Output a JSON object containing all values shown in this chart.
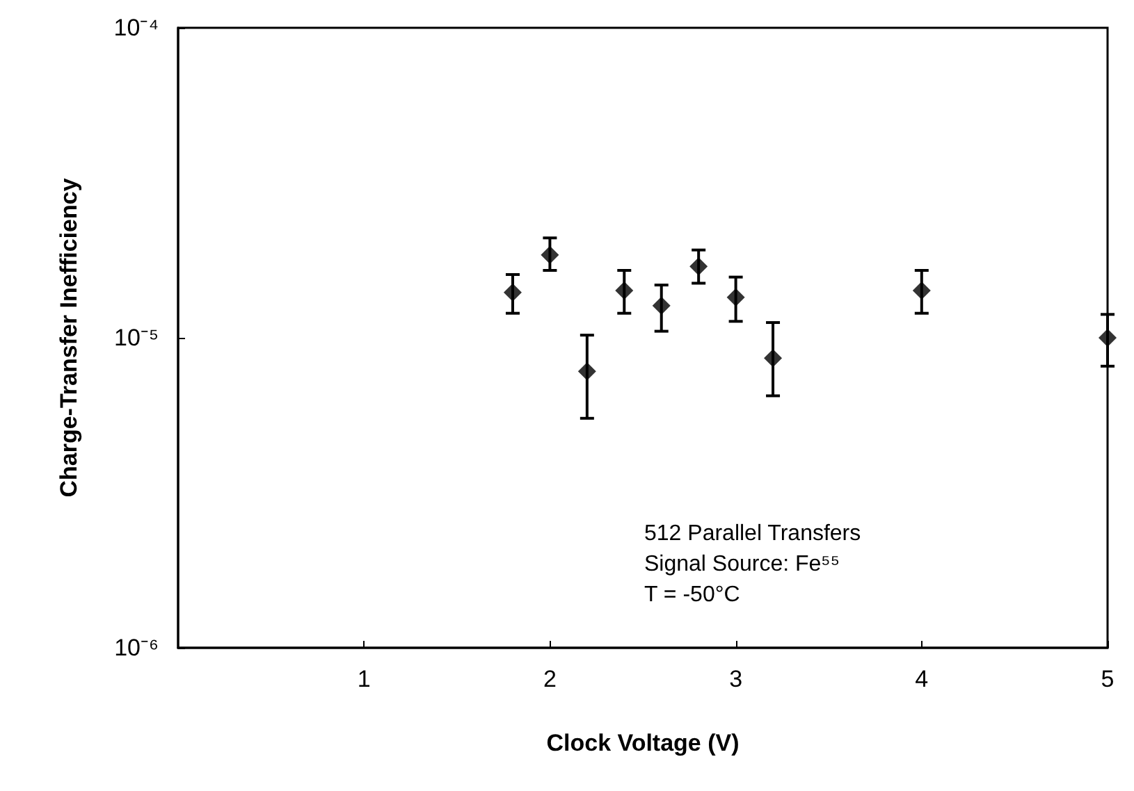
{
  "chart_data": {
    "type": "scatter",
    "xlabel": "Clock Voltage (V)",
    "ylabel": "Charge-Transfer Inefficiency",
    "x": [
      1.8,
      2.0,
      2.2,
      2.4,
      2.6,
      2.8,
      3.0,
      3.2,
      4.0,
      5.0
    ],
    "values": [
      1.4e-05,
      1.85e-05,
      7.8e-06,
      1.42e-05,
      1.27e-05,
      1.7e-05,
      1.35e-05,
      8.6e-06,
      1.42e-05,
      1e-05
    ],
    "errors": [
      [
        1.2e-05,
        1.6e-05
      ],
      [
        1.65e-05,
        2.1e-05
      ],
      [
        5.5e-06,
        1.02e-05
      ],
      [
        1.2e-05,
        1.65e-05
      ],
      [
        1.05e-05,
        1.48e-05
      ],
      [
        1.5e-05,
        1.92e-05
      ],
      [
        1.13e-05,
        1.57e-05
      ],
      [
        6.5e-06,
        1.12e-05
      ],
      [
        1.2e-05,
        1.65e-05
      ],
      [
        8.1e-06,
        1.19e-05
      ]
    ],
    "color": "#000000",
    "marker": "diamond",
    "log": "y",
    "grid": false,
    "xlim": [
      0,
      5
    ],
    "xticks": [
      1,
      2,
      3,
      4,
      5
    ],
    "ylim": [
      1e-06,
      0.0001
    ],
    "yticks": [
      {
        "value": 1e-06,
        "label": "10⁻⁶"
      },
      {
        "value": 1e-05,
        "label": "10⁻⁵"
      },
      {
        "value": 0.0001,
        "label": "10⁻⁴"
      }
    ],
    "annotations": [
      "512 Parallel Transfers",
      "Signal Source: Fe⁵⁵",
      "T = -50°C"
    ]
  }
}
